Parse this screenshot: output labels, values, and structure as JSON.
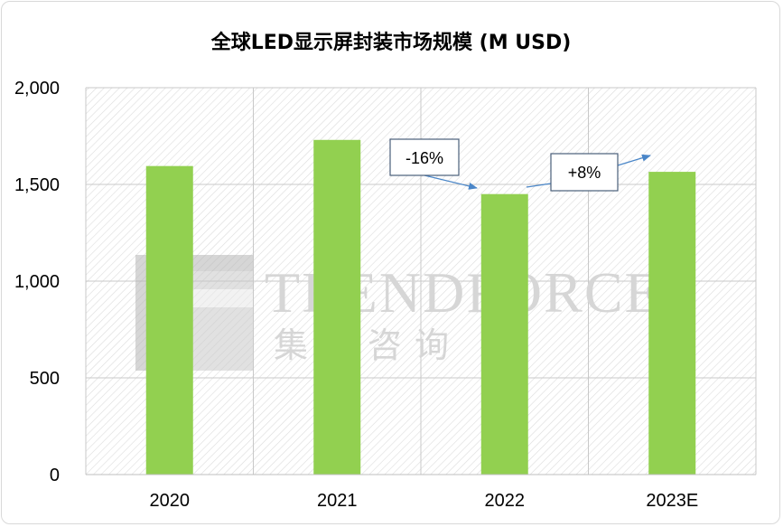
{
  "chart_data": {
    "type": "bar",
    "title": "全球LED显示屏封装市场规模 (M USD)",
    "categories": [
      "2020",
      "2021",
      "2022",
      "2023E"
    ],
    "values": [
      1595,
      1730,
      1450,
      1565
    ],
    "ylim": [
      0,
      2000
    ],
    "yticks": [
      0,
      500,
      1000,
      1500,
      2000
    ],
    "ytick_labels": [
      "0",
      "500",
      "1,000",
      "1,500",
      "2,000"
    ],
    "xlabel": "",
    "ylabel": "",
    "grid": true,
    "legend": "none",
    "bar_color": "#92d050",
    "annotations": [
      {
        "label": "-16%",
        "from": "2021",
        "to": "2022"
      },
      {
        "label": "+8%",
        "from": "2022",
        "to": "2023E"
      }
    ]
  },
  "watermark": {
    "brand": "TRENDFORCE",
    "brand_cn": "集邦咨询"
  }
}
